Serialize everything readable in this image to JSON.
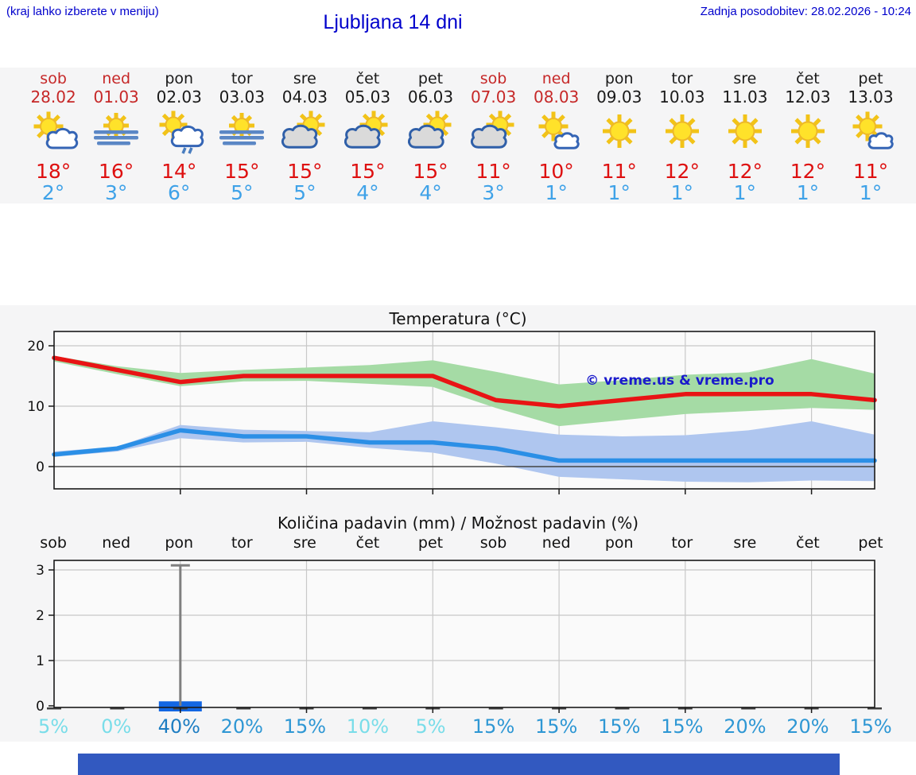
{
  "header": {
    "note": "(kraj lahko izberete v meniju)",
    "title": "Ljubljana 14 dni",
    "updated": "Zadnja posodobitev: 28.02.2026 - 10:24"
  },
  "forecast": {
    "days": [
      {
        "name": "sob",
        "date": "28.02",
        "weekend": true,
        "icon": "partly-cloudy-icon",
        "hi": "18°",
        "lo": "2°"
      },
      {
        "name": "ned",
        "date": "01.03",
        "weekend": true,
        "icon": "fog-sun-icon",
        "hi": "16°",
        "lo": "3°"
      },
      {
        "name": "pon",
        "date": "02.03",
        "weekend": false,
        "icon": "sun-rain-icon",
        "hi": "14°",
        "lo": "6°"
      },
      {
        "name": "tor",
        "date": "03.03",
        "weekend": false,
        "icon": "fog-sun-icon",
        "hi": "15°",
        "lo": "5°"
      },
      {
        "name": "sre",
        "date": "04.03",
        "weekend": false,
        "icon": "cloudy-sun-icon",
        "hi": "15°",
        "lo": "5°"
      },
      {
        "name": "čet",
        "date": "05.03",
        "weekend": false,
        "icon": "cloudy-sun-icon",
        "hi": "15°",
        "lo": "4°"
      },
      {
        "name": "pet",
        "date": "06.03",
        "weekend": false,
        "icon": "cloudy-sun-icon",
        "hi": "15°",
        "lo": "4°"
      },
      {
        "name": "sob",
        "date": "07.03",
        "weekend": true,
        "icon": "cloudy-sun-icon",
        "hi": "11°",
        "lo": "3°"
      },
      {
        "name": "ned",
        "date": "08.03",
        "weekend": true,
        "icon": "mostly-sunny-icon",
        "hi": "10°",
        "lo": "1°"
      },
      {
        "name": "pon",
        "date": "09.03",
        "weekend": false,
        "icon": "sunny-icon",
        "hi": "11°",
        "lo": "1°"
      },
      {
        "name": "tor",
        "date": "10.03",
        "weekend": false,
        "icon": "sunny-icon",
        "hi": "12°",
        "lo": "1°"
      },
      {
        "name": "sre",
        "date": "11.03",
        "weekend": false,
        "icon": "sunny-icon",
        "hi": "12°",
        "lo": "1°"
      },
      {
        "name": "čet",
        "date": "12.03",
        "weekend": false,
        "icon": "sunny-icon",
        "hi": "12°",
        "lo": "1°"
      },
      {
        "name": "pet",
        "date": "13.03",
        "weekend": false,
        "icon": "mostly-sunny-icon",
        "hi": "11°",
        "lo": "1°"
      }
    ]
  },
  "chart_data": [
    {
      "type": "line",
      "title": "Temperatura (°C)",
      "yticks": [
        0,
        10,
        20
      ],
      "ylim": [
        -3.7,
        22.4
      ],
      "grid": true,
      "watermark": "© vreme.us & vreme.pro",
      "series": [
        {
          "name": "max temperature",
          "values": [
            18,
            16,
            14,
            15,
            15,
            15,
            15,
            11,
            10,
            11,
            12,
            12,
            12,
            11
          ],
          "band_upper": [
            18.3,
            16.6,
            15.5,
            16.0,
            16.4,
            16.8,
            17.6,
            15.7,
            13.6,
            14.3,
            15.2,
            15.6,
            17.8,
            15.4
          ],
          "band_lower": [
            17.4,
            15.3,
            13.3,
            14.1,
            14.2,
            13.7,
            13.2,
            9.7,
            6.7,
            7.7,
            8.7,
            9.2,
            9.7,
            9.4
          ]
        },
        {
          "name": "min temperature",
          "values": [
            2,
            3,
            6,
            5,
            5,
            4,
            4,
            3,
            1,
            1,
            1,
            1,
            1,
            1
          ],
          "band_upper": [
            2.5,
            3.3,
            6.9,
            6.1,
            5.9,
            5.7,
            7.5,
            6.5,
            5.3,
            5.0,
            5.2,
            6.0,
            7.5,
            5.3
          ],
          "band_lower": [
            1.6,
            2.5,
            4.7,
            4.0,
            4.1,
            3.1,
            2.3,
            0.5,
            -1.7,
            -2.1,
            -2.5,
            -2.6,
            -2.3,
            -2.4
          ]
        }
      ]
    },
    {
      "type": "bar",
      "title": "Količina padavin (mm) / Možnost padavin (%)",
      "categories": [
        "sob",
        "ned",
        "pon",
        "tor",
        "sre",
        "čet",
        "pet",
        "sob",
        "ned",
        "pon",
        "tor",
        "sre",
        "čet",
        "pet"
      ],
      "values": [
        0,
        0,
        0.1,
        0,
        0,
        0,
        0,
        0,
        0,
        0,
        0,
        0,
        0,
        0
      ],
      "whisker_high": [
        0,
        0,
        3.1,
        0,
        0,
        0,
        0,
        0,
        0,
        0,
        0,
        0,
        0,
        0
      ],
      "probabilities_pct": [
        5,
        0,
        40,
        20,
        15,
        10,
        5,
        15,
        15,
        15,
        15,
        20,
        20,
        15
      ],
      "yticks": [
        0,
        1,
        2,
        3
      ],
      "ylim": [
        0,
        3.25
      ],
      "grid": true
    }
  ],
  "colors": {
    "link_blue": "#0000cc",
    "section_bg": "#f5f5f6",
    "plot_bg": "#fafafa",
    "grid": "#c8c8c8",
    "axis": "#1a1a1a",
    "weekend_red": "#c62828",
    "weekday_black": "#1a1a1a",
    "high_temp_red": "#de1010",
    "low_temp_blue": "#3fa2e8",
    "temp_max_line": "#e81414",
    "temp_max_band": "#a5dba5",
    "temp_min_line": "#2b8fe6",
    "temp_min_band": "#afc6ef",
    "zero_line": "#444444",
    "precip_bar_blue": "#1266e3",
    "whisker_gray": "#7f7f7f",
    "baseline_mark": "#3f3f3f",
    "prob_low_cyan": "#79dde9",
    "prob_mid_blue": "#2e97d4",
    "prob_high_blue": "#1d7dc2",
    "watermark_blue": "#1a1acc",
    "bottom_bar_blue": "#3259c0"
  }
}
